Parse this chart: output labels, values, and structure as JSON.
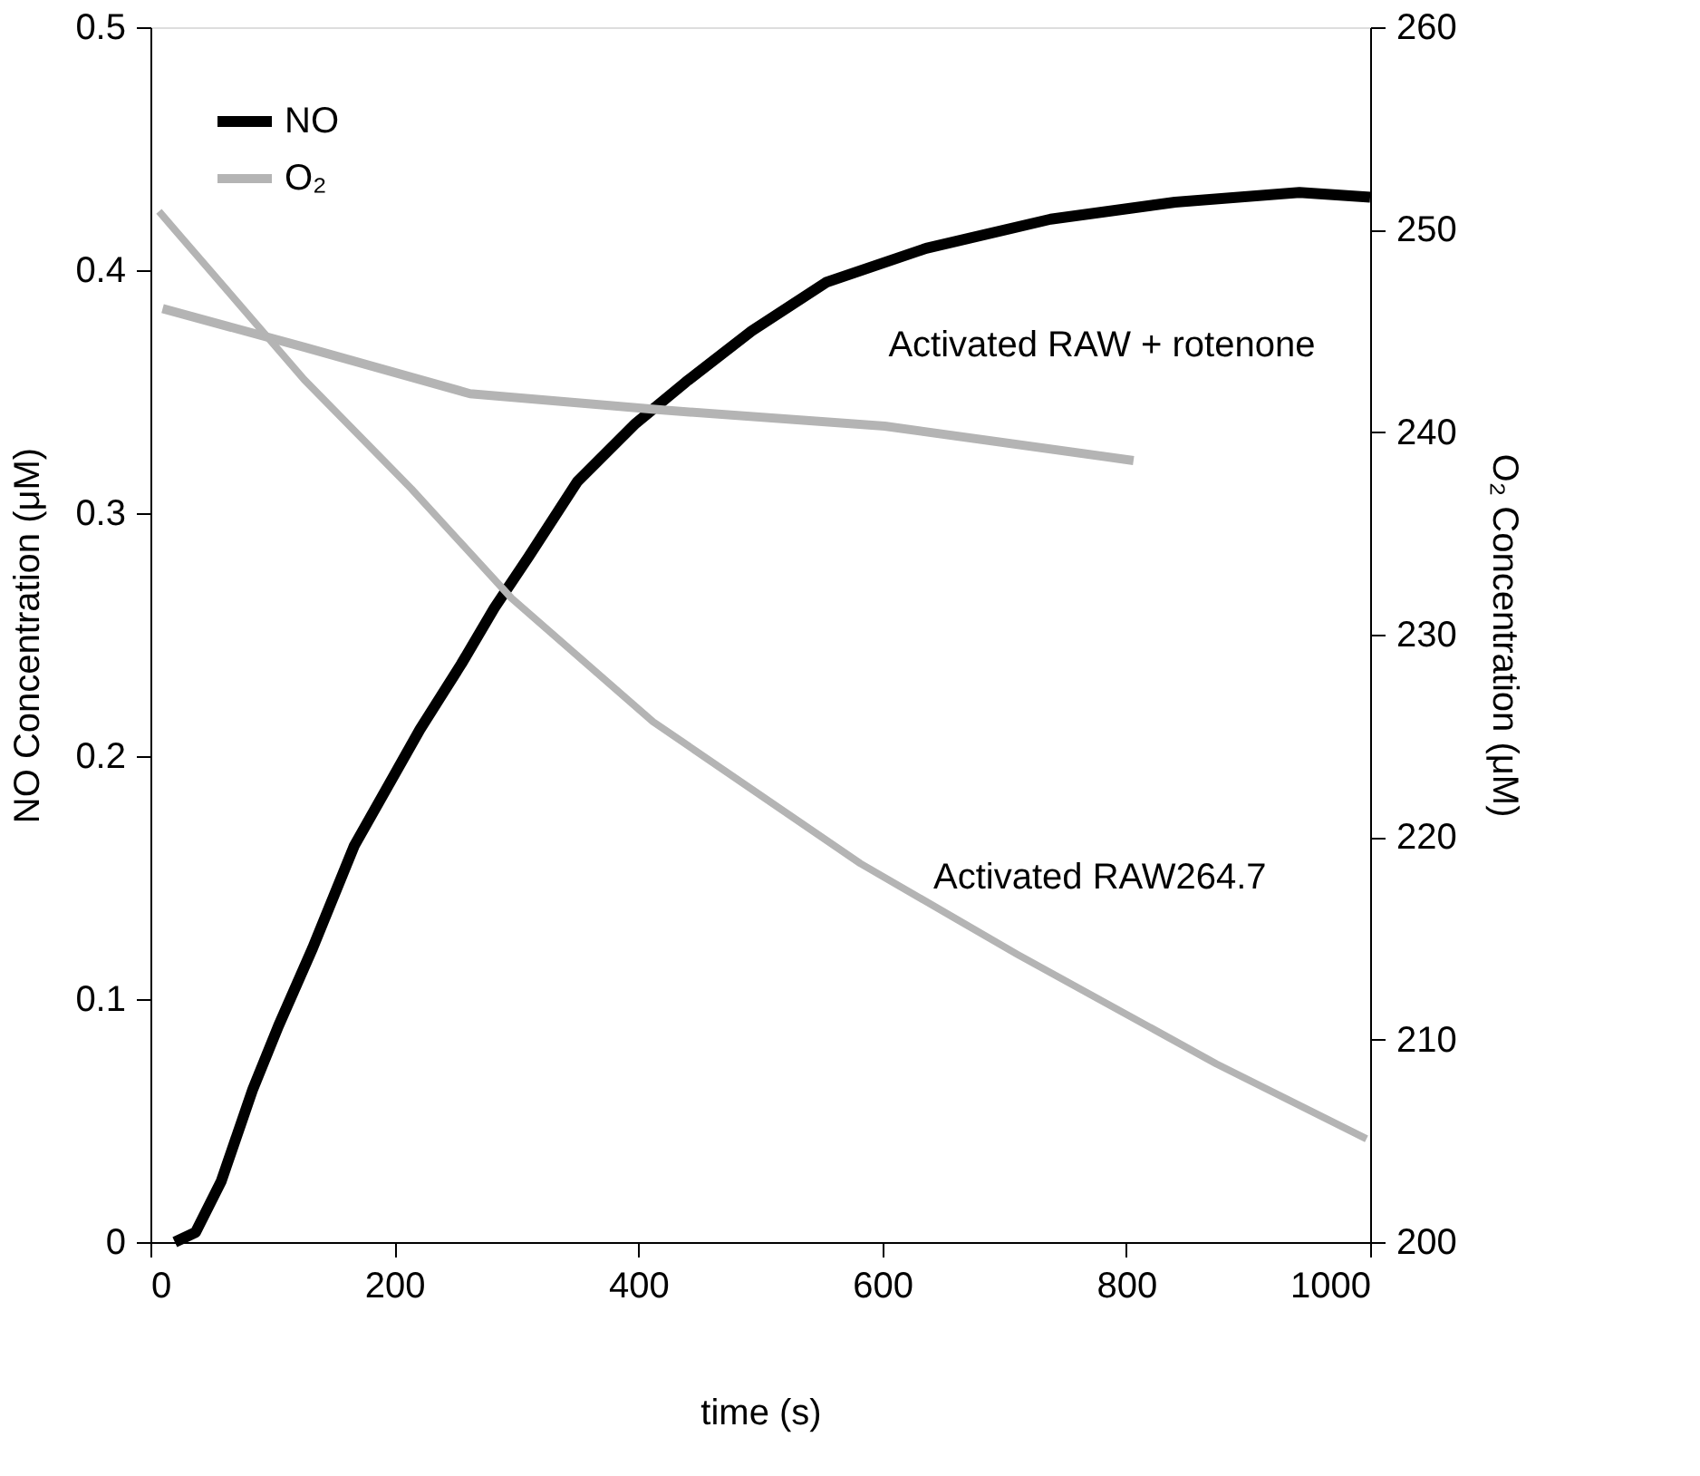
{
  "chart_data": {
    "type": "line",
    "xlabel": "time (s)",
    "ylabel": "NO Concentration (μM)",
    "y2label": "O₂ Concentration (μM)",
    "xlim": [
      0,
      1000
    ],
    "xticks": [
      0,
      200,
      400,
      600,
      800,
      1000
    ],
    "ylim": [
      0,
      0.5
    ],
    "yticks": [
      0,
      0.1,
      0.2,
      0.3,
      0.4,
      0.5
    ],
    "y2lim": [
      200,
      260
    ],
    "y2ticks": [
      200,
      210,
      220,
      230,
      240,
      250,
      260
    ],
    "grid": false,
    "legend": "top left",
    "marker": "none",
    "line_style": "solid",
    "series": [
      {
        "name": "NO",
        "color": "#000000",
        "axis": "y",
        "x": [
          20,
          37,
          58,
          84,
          105,
          133,
          167,
          194,
          221,
          255,
          282,
          310,
          350,
          398,
          439,
          493,
          554,
          636,
          738,
          840,
          942,
          1000
        ],
        "values": [
          0,
          0.004,
          0.025,
          0.063,
          0.089,
          0.121,
          0.163,
          0.187,
          0.211,
          0.238,
          0.261,
          0.282,
          0.313,
          0.337,
          0.354,
          0.375,
          0.395,
          0.409,
          0.421,
          0.428,
          0.432,
          0.43
        ]
      },
      {
        "name": "O₂",
        "color": "#b4b4b4",
        "axis": "y2",
        "x": [
          10,
          126,
          262,
          418,
          602,
          806
        ],
        "values": [
          246.1,
          244.2,
          241.9,
          241.1,
          240.3,
          238.6
        ]
      },
      {
        "color": "#b4b4b4",
        "axis": "y2",
        "x": [
          7,
          126,
          214,
          296,
          412,
          582,
          711,
          874,
          997
        ],
        "values": [
          250.9,
          242.6,
          237.2,
          231.8,
          225.7,
          218.7,
          214.2,
          208.8,
          205.1
        ]
      }
    ],
    "annotations": [
      "Activated RAW + rotenone",
      "Activated RAW264.7"
    ]
  }
}
